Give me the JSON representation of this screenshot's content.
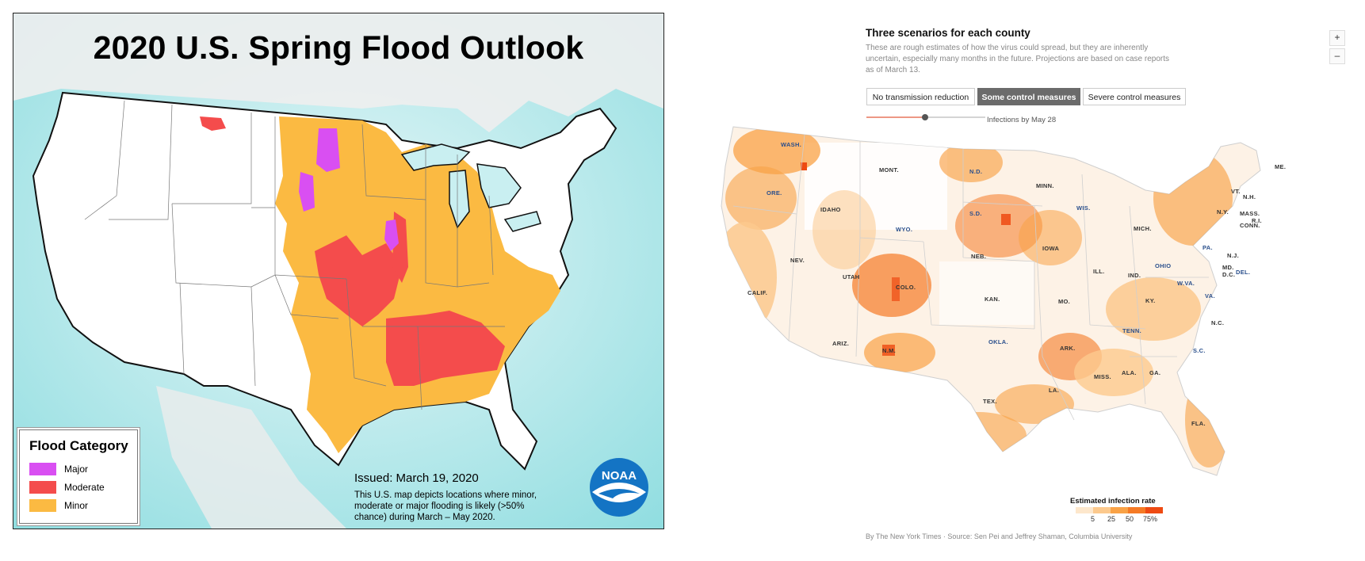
{
  "noaa": {
    "title": "2020 U.S. Spring Flood Outlook",
    "legend_title": "Flood Category",
    "legend": [
      {
        "label": "Major",
        "color": "#d94ff2"
      },
      {
        "label": "Moderate",
        "color": "#f44c4c"
      },
      {
        "label": "Minor",
        "color": "#fbba42"
      }
    ],
    "issued": "Issued:  March 19, 2020",
    "note": "This U.S. map depicts locations where minor, moderate or major flooding is likely (>50% chance) during March – May  2020.",
    "logo_text": "NOAA",
    "logo_icon": "noaa-logo"
  },
  "nyt": {
    "title": "Three scenarios for each county",
    "description": "These are rough estimates of how the virus could spread, but they are inherently uncertain, especially many months in the future. Projections are based on case reports as of March 13.",
    "zoom_in": "+",
    "zoom_out": "–",
    "tabs": [
      {
        "label": "No transmission reduction",
        "active": false
      },
      {
        "label": "Some control measures",
        "active": true
      },
      {
        "label": "Severe control measures",
        "active": false
      }
    ],
    "slider_label": "Infections by May 28",
    "scale_title": "Estimated infection rate",
    "scale_ticks": [
      "5",
      "25",
      "50",
      "75%"
    ],
    "scale_colors": [
      "#fde7cc",
      "#fcc98d",
      "#f9a246",
      "#f57a25",
      "#ee4a12"
    ],
    "credit": "By The New York Times  ·  Source: Sen Pei and Jeffrey Shaman, Columbia University",
    "state_labels": {
      "wash": "WASH.",
      "ore": "ORE.",
      "calif": "CALIF.",
      "idaho": "IDAHO",
      "nev": "NEV.",
      "mont": "MONT.",
      "wyo": "WYO.",
      "utah": "UTAH",
      "ariz": "ARIZ.",
      "colo": "COLO.",
      "nm": "N.M.",
      "nd": "N.D.",
      "sd": "S.D.",
      "neb": "NEB.",
      "kan": "KAN.",
      "okla": "OKLA.",
      "tex": "TEX.",
      "minn": "MINN.",
      "iowa": "IOWA",
      "mo": "MO.",
      "ark": "ARK.",
      "la": "LA.",
      "wis": "WIS.",
      "ill": "ILL.",
      "mich": "MICH.",
      "ind": "IND.",
      "ohio": "OHIO",
      "ky": "KY.",
      "tenn": "TENN.",
      "miss": "MISS.",
      "ala": "ALA.",
      "ga": "GA.",
      "fla": "FLA.",
      "sc": "S.C.",
      "nc": "N.C.",
      "va": "VA.",
      "wva": "W.VA.",
      "pa": "PA.",
      "ny": "N.Y.",
      "nj": "N.J.",
      "md": "MD.",
      "dc": "D.C.",
      "del": "DEL.",
      "vt": "VT.",
      "nh": "N.H.",
      "mass": "MASS.",
      "ri": "R.I.",
      "conn": "CONN.",
      "me": "ME."
    }
  }
}
